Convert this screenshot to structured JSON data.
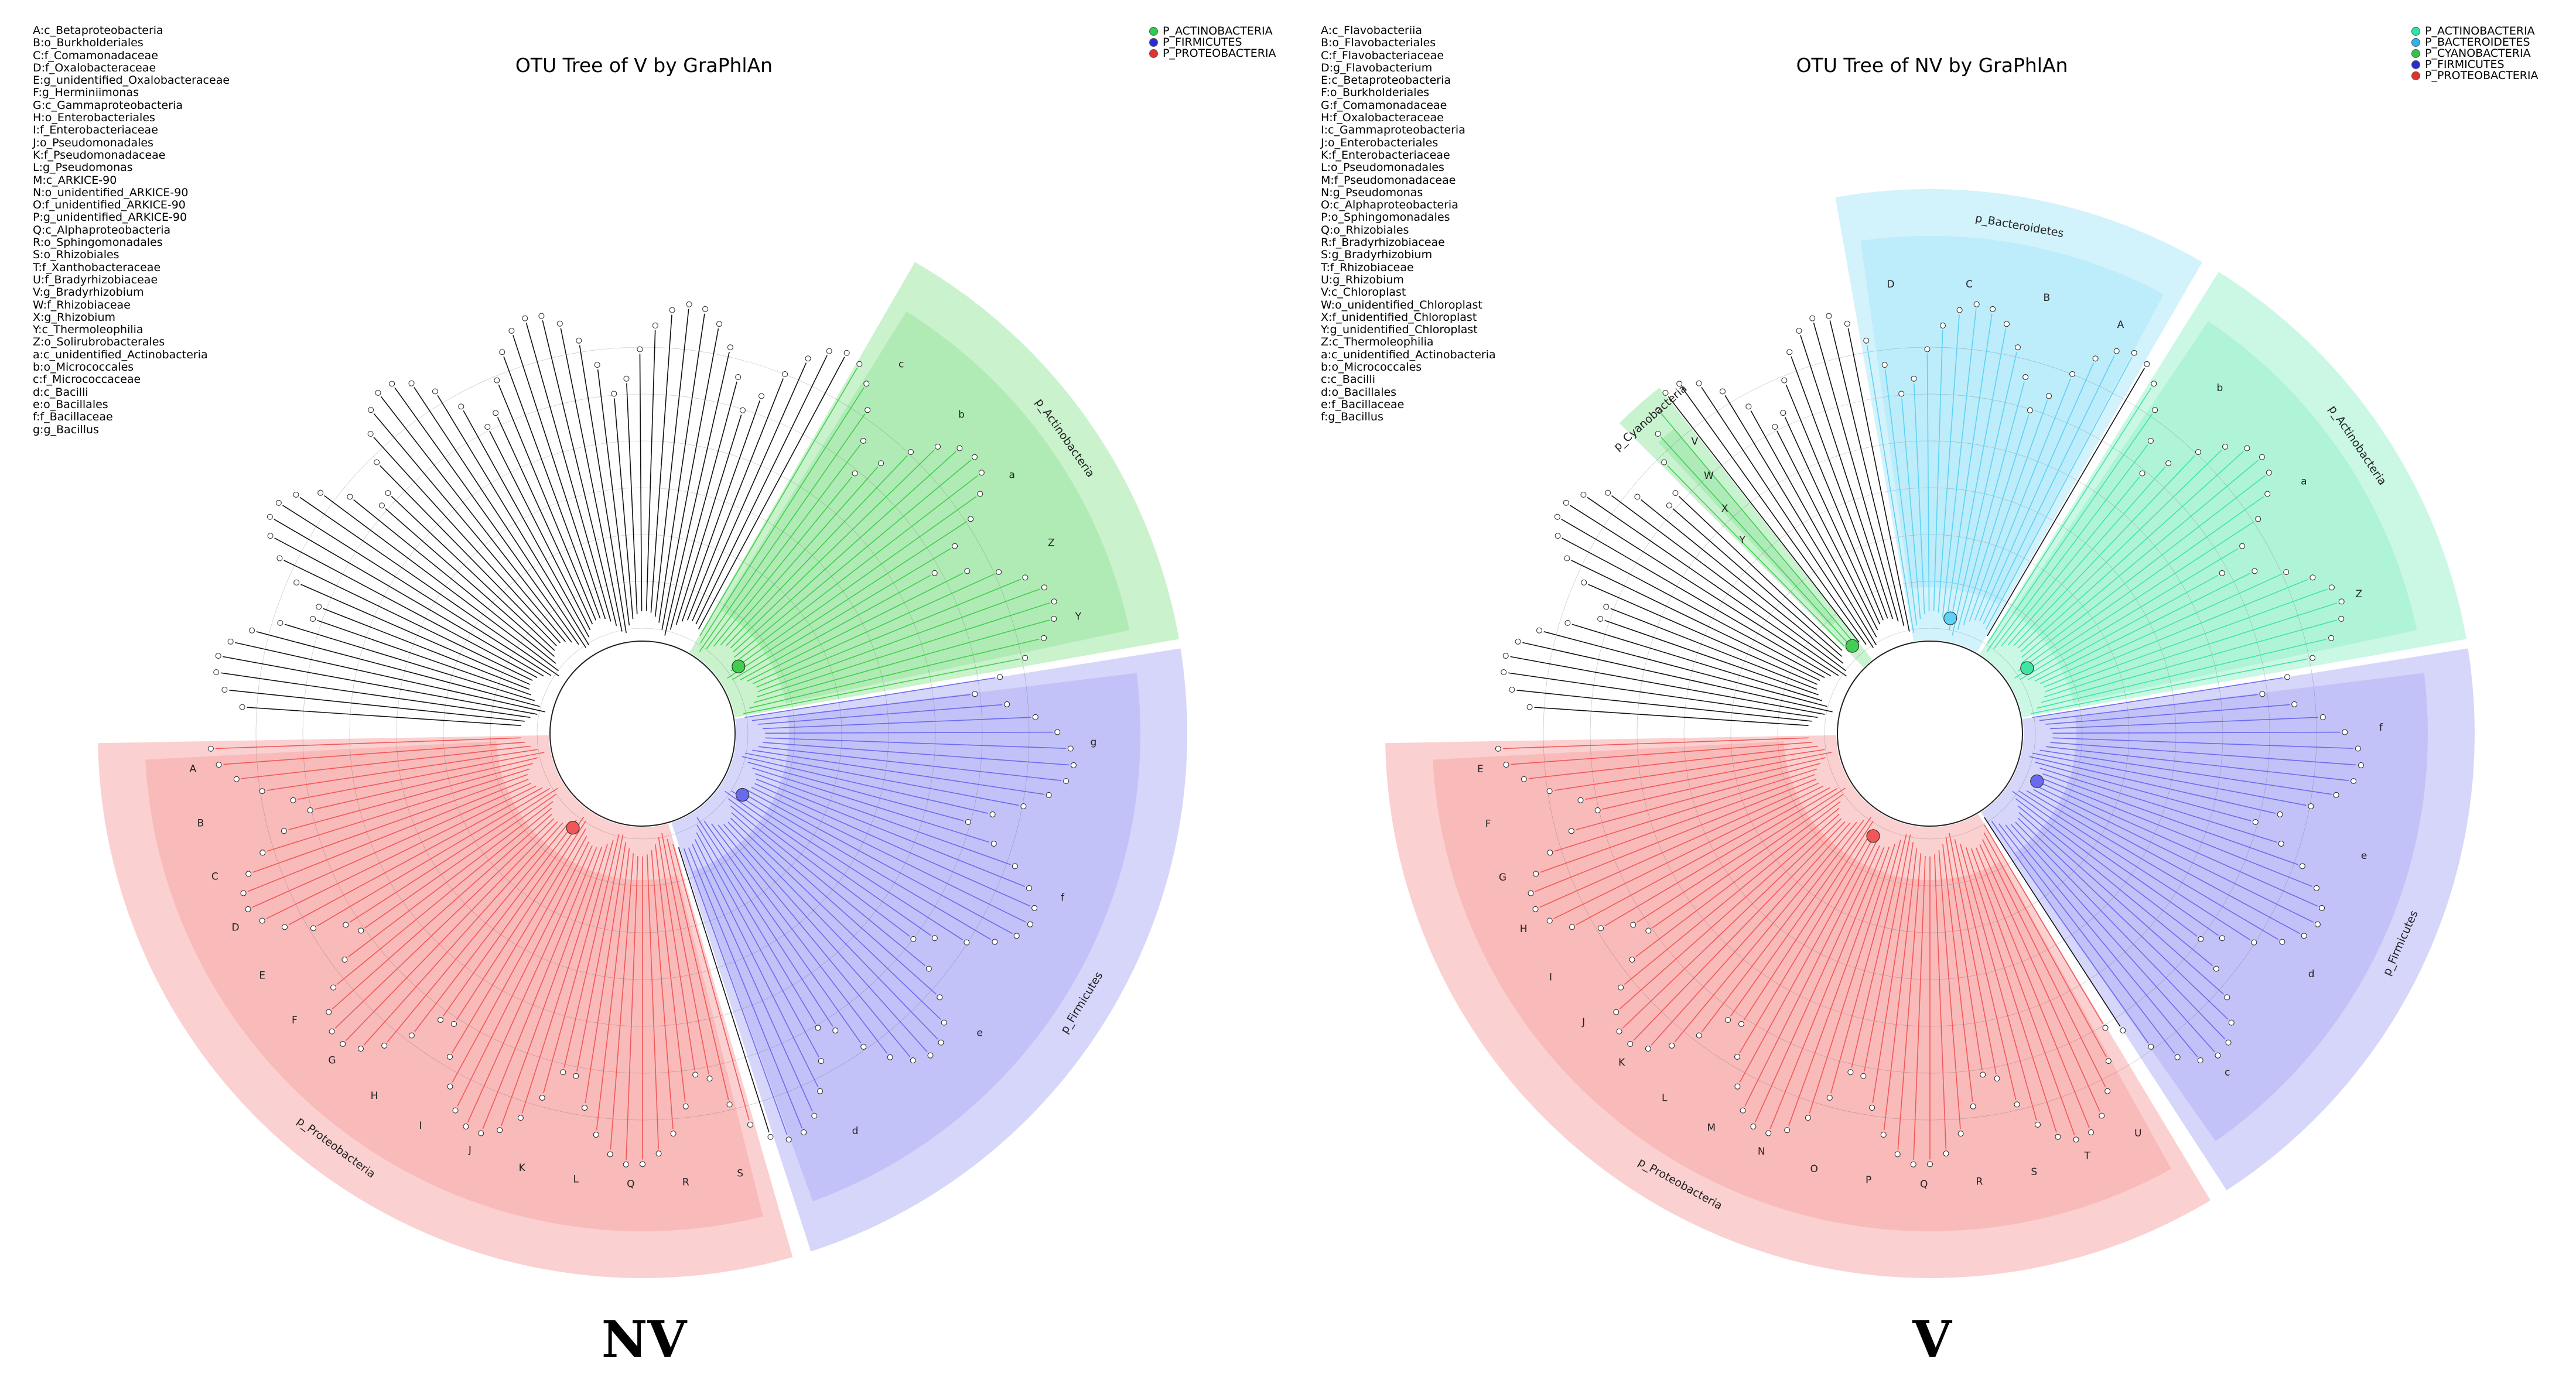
{
  "panels": [
    {
      "id": "left",
      "title": "OTU Tree of V by GraPhlAn",
      "panel_label": "NV",
      "center": [
        1097,
        1253
      ],
      "legend": [
        "A:c_Betaproteobacteria",
        "B:o_Burkholderiales",
        "C:f_Comamonadaceae",
        "D:f_Oxalobacteraceae",
        "E:g_unidentified_Oxalobacteraceae",
        "F:g_Herminiimonas",
        "G:c_Gammaproteobacteria",
        "H:o_Enterobacteriales",
        "I:f_Enterobacteriaceae",
        "J:o_Pseudomonadales",
        "K:f_Pseudomonadaceae",
        "L:g_Pseudomonas",
        "M:c_ARKICE-90",
        "N:o_unidentified_ARKICE-90",
        "O:f_unidentified_ARKICE-90",
        "P:g_unidentified_ARKICE-90",
        "Q:c_Alphaproteobacteria",
        "R:o_Sphingomonadales",
        "S:o_Rhizobiales",
        "T:f_Xanthobacteraceae",
        "U:f_Bradyrhizobiaceae",
        "V:g_Bradyrhizobium",
        "W:f_Rhizobiaceae",
        "X:g_Rhizobium",
        "Y:c_Thermoleophilia",
        "Z:o_Solirubrobacterales",
        "a:c_unidentified_Actinobacteria",
        "b:o_Micrococcales",
        "c:f_Micrococcaceae",
        "d:c_Bacilli",
        "e:o_Bacillales",
        "f:f_Bacillaceae",
        "g:g_Bacillus"
      ],
      "phyla_legend": [
        {
          "label": "P_ACTINOBACTERIA",
          "color": "#2ecc52"
        },
        {
          "label": "P_FIRMICUTES",
          "color": "#2b2bd6"
        },
        {
          "label": "P_PROTEOBACTERIA",
          "color": "#e53030"
        }
      ],
      "clades": [
        {
          "name": "p_Actinobacteria",
          "color": "#3fcf4c",
          "start": 10,
          "end": 60,
          "letters": [
            "Y",
            "Z",
            "a",
            "b",
            "c"
          ]
        },
        {
          "name": "p_Firmicutes",
          "color": "#6a6af0",
          "start": -72,
          "end": 9,
          "letters": [
            "d",
            "e",
            "f",
            "g"
          ]
        },
        {
          "name": "p_Proteobacteria",
          "color": "#f25757",
          "start": -179,
          "end": -74,
          "letters": [
            "A",
            "B",
            "C",
            "D",
            "E",
            "F",
            "G",
            "H",
            "I",
            "J",
            "K",
            "L",
            "Q",
            "R",
            "S"
          ]
        }
      ]
    },
    {
      "id": "right",
      "title": "OTU Tree of NV by GraPhlAn",
      "panel_label": "V",
      "center": [
        1096,
        1253
      ],
      "legend": [
        "A:c_Flavobacteriia",
        "B:o_Flavobacteriales",
        "C:f_Flavobacteriaceae",
        "D:g_Flavobacterium",
        "E:c_Betaproteobacteria",
        "F:o_Burkholderiales",
        "G:f_Comamonadaceae",
        "H:f_Oxalobacteraceae",
        "I:c_Gammaproteobacteria",
        "J:o_Enterobacteriales",
        "K:f_Enterobacteriaceae",
        "L:o_Pseudomonadales",
        "M:f_Pseudomonadaceae",
        "N:g_Pseudomonas",
        "O:c_Alphaproteobacteria",
        "P:o_Sphingomonadales",
        "Q:o_Rhizobiales",
        "R:f_Bradyrhizobiaceae",
        "S:g_Bradyrhizobium",
        "T:f_Rhizobiaceae",
        "U:g_Rhizobium",
        "V:c_Chloroplast",
        "W:o_unidentified_Chloroplast",
        "X:f_unidentified_Chloroplast",
        "Y:g_unidentified_Chloroplast",
        "Z:c_Thermoleophilia",
        "a:c_unidentified_Actinobacteria",
        "b:o_Micrococcales",
        "c:c_Bacilli",
        "d:o_Bacillales",
        "e:f_Bacillaceae",
        "f:g_Bacillus"
      ],
      "phyla_legend": [
        {
          "label": "P_ACTINOBACTERIA",
          "color": "#2ee6a8"
        },
        {
          "label": "P_BACTEROIDETES",
          "color": "#2bb5ee"
        },
        {
          "label": "P_CYANOBACTERIA",
          "color": "#34c24a"
        },
        {
          "label": "P_FIRMICUTES",
          "color": "#2b2bd6"
        },
        {
          "label": "P_PROTEOBACTERIA",
          "color": "#e53030"
        }
      ],
      "clades": [
        {
          "name": "p_Bacteroidetes",
          "color": "#5fd1f5",
          "start": 60,
          "end": 100,
          "letters": [
            "A",
            "B",
            "C",
            "D"
          ]
        },
        {
          "name": "p_Actinobacteria",
          "color": "#3fe6a3",
          "start": 10,
          "end": 58,
          "letters": [
            "Z",
            "a",
            "b"
          ]
        },
        {
          "name": "p_Cyanobacteria",
          "color": "#3ecf54",
          "start": 128,
          "end": 135,
          "letters": [
            "V",
            "W",
            "X",
            "Y"
          ]
        },
        {
          "name": "p_Firmicutes",
          "color": "#6a6af0",
          "start": -57,
          "end": 9,
          "letters": [
            "c",
            "d",
            "e",
            "f"
          ]
        },
        {
          "name": "p_Proteobacteria",
          "color": "#f25757",
          "start": -179,
          "end": -59,
          "letters": [
            "E",
            "F",
            "G",
            "H",
            "I",
            "J",
            "K",
            "L",
            "M",
            "N",
            "O",
            "P",
            "Q",
            "R",
            "S",
            "T",
            "U"
          ]
        }
      ]
    }
  ]
}
